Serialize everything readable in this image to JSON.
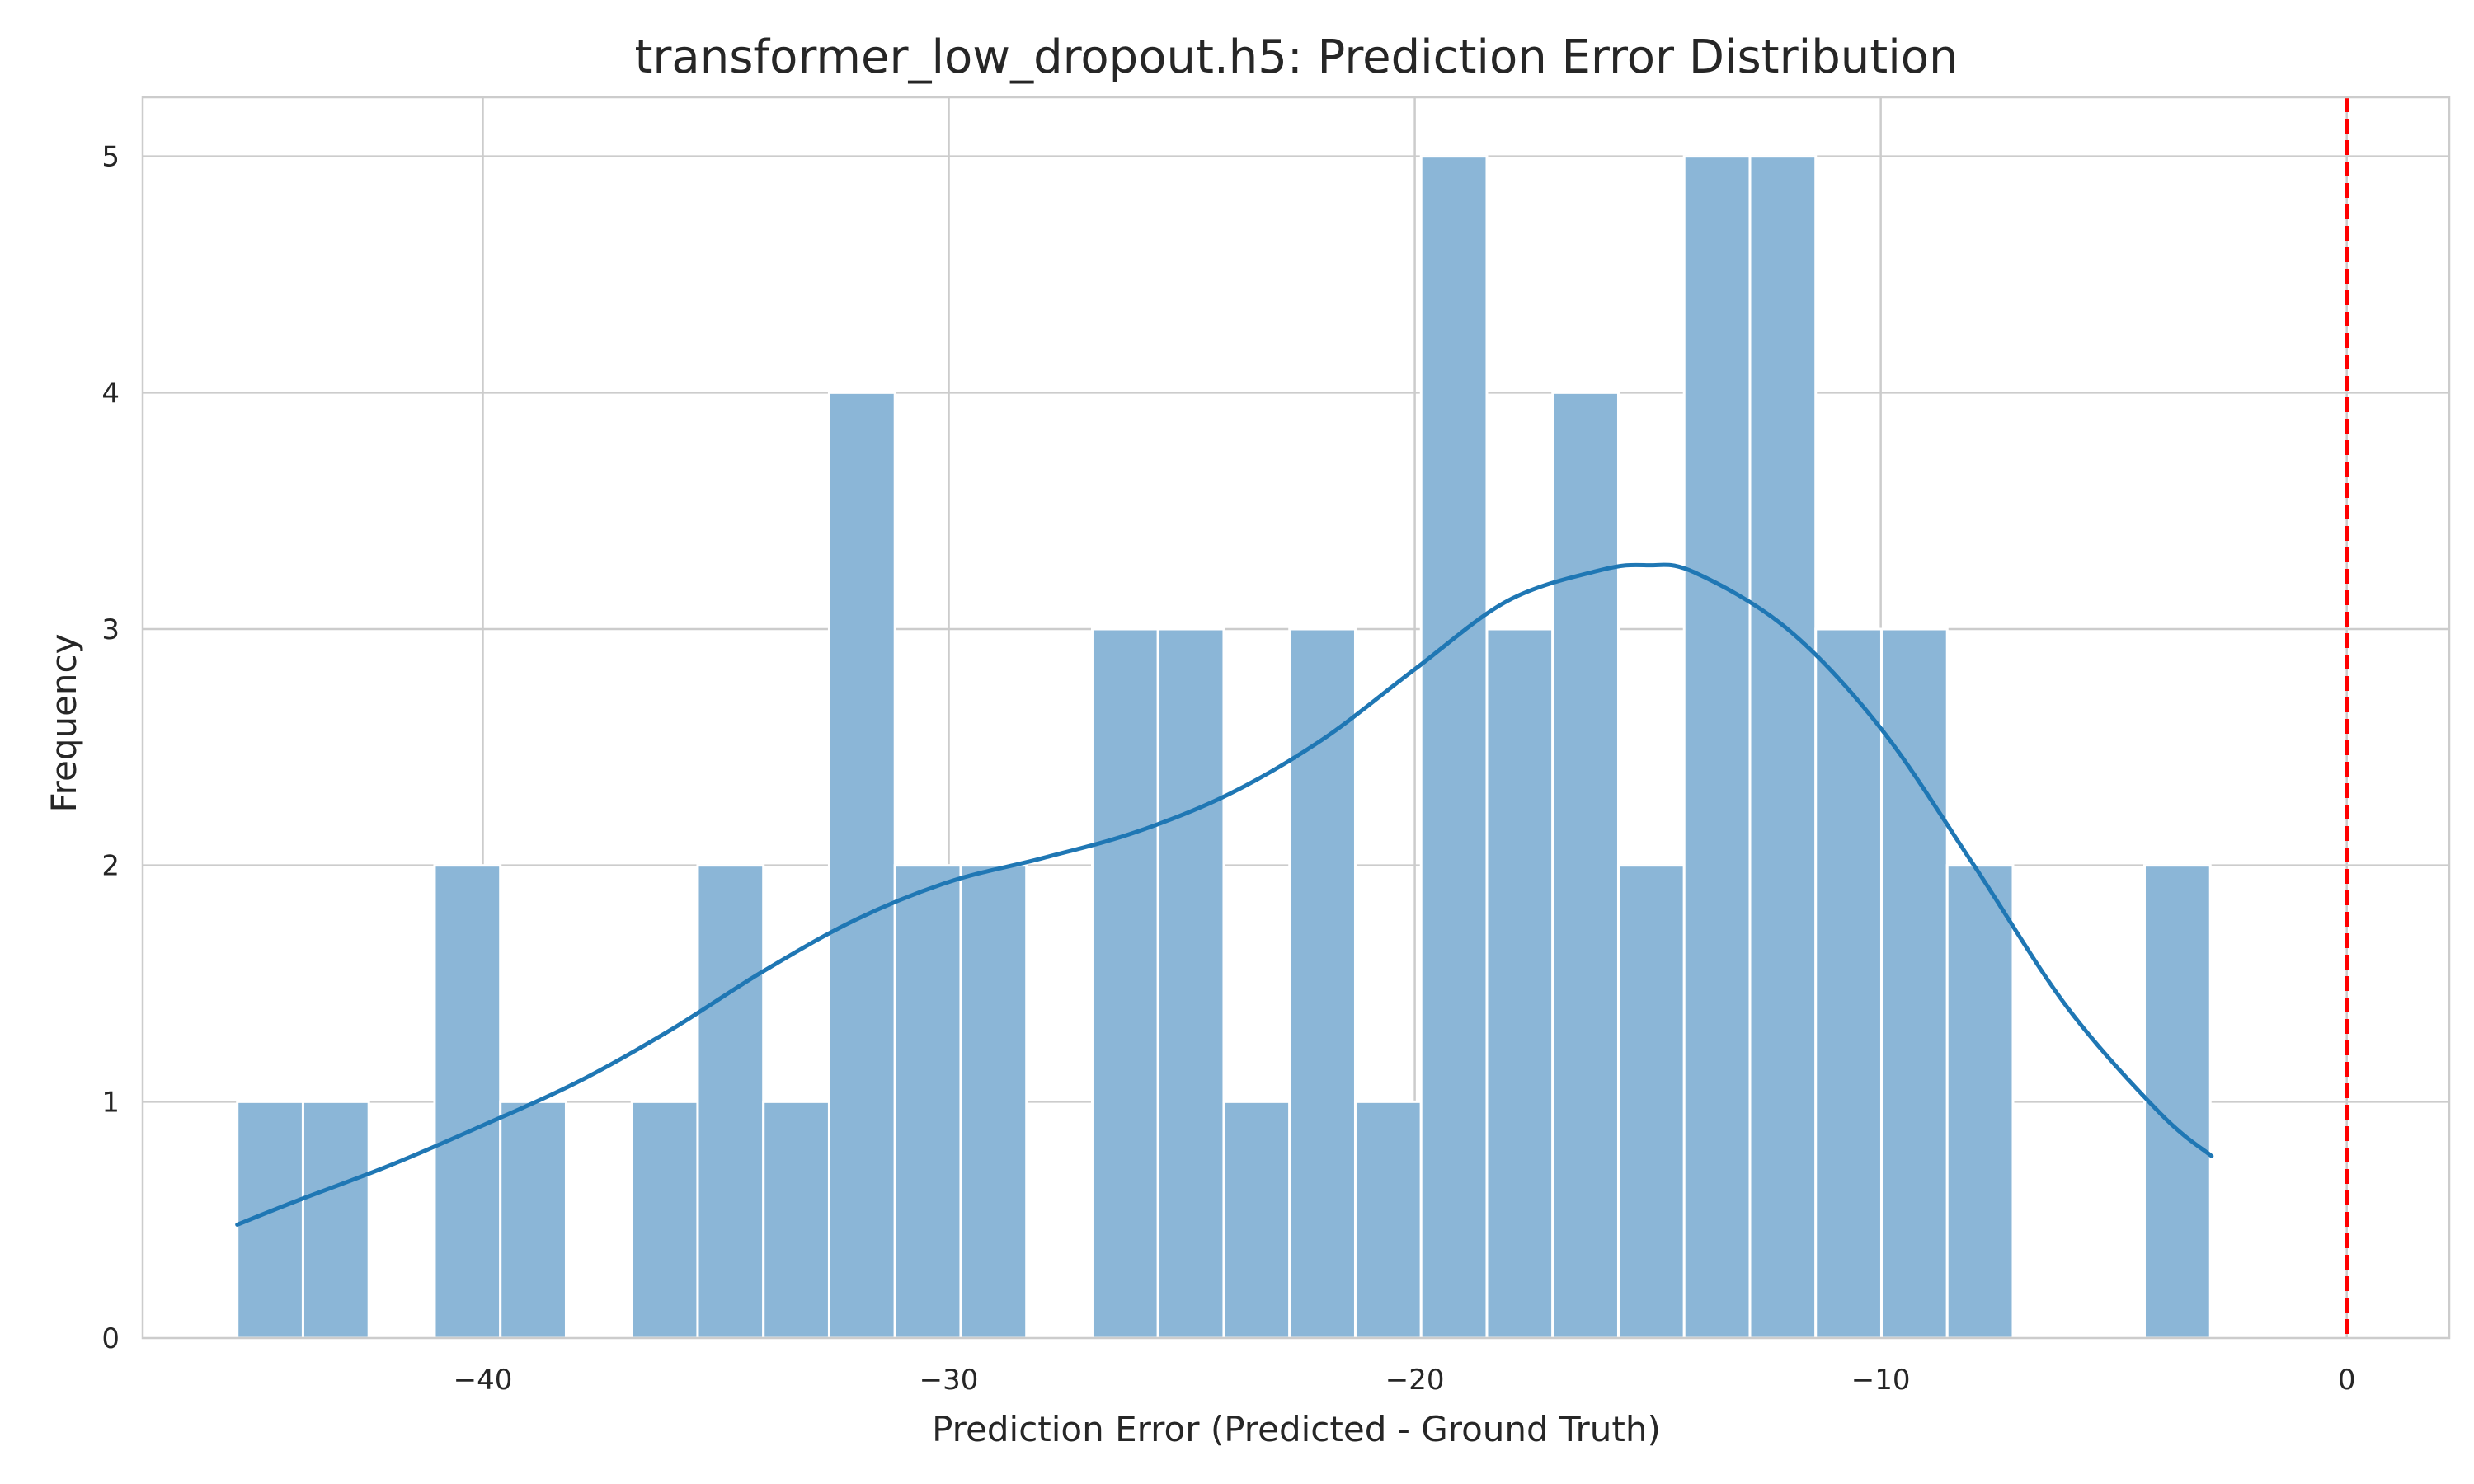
{
  "chart_data": {
    "type": "bar",
    "subtype": "histogram-with-kde",
    "title": "transformer_low_dropout.h5: Prediction Error Distribution",
    "xlabel": "Prediction Error (Predicted - Ground Truth)",
    "ylabel": "Frequency",
    "xlim": [
      -47.3,
      2.2
    ],
    "ylim": [
      0,
      5.25
    ],
    "xticks": [
      -40,
      -30,
      -20,
      -10,
      0
    ],
    "xtick_labels": [
      "−40",
      "−30",
      "−20",
      "−10",
      "0"
    ],
    "yticks": [
      0,
      1,
      2,
      3,
      4,
      5
    ],
    "ytick_labels": [
      "0",
      "1",
      "2",
      "3",
      "4",
      "5"
    ],
    "grid": true,
    "bar_color": "#8bb6d7",
    "bar_edge_color": "#ffffff",
    "bin_start": -45.27,
    "bin_width": 1.4114,
    "counts": [
      1,
      1,
      0,
      2,
      1,
      0,
      1,
      2,
      1,
      4,
      2,
      2,
      0,
      3,
      3,
      1,
      3,
      1,
      5,
      3,
      4,
      2,
      5,
      5,
      3,
      3,
      2,
      0,
      0,
      2
    ],
    "kde": {
      "color": "#1f77b4",
      "x": [
        -45.27,
        -44,
        -42,
        -40,
        -38,
        -36,
        -34,
        -32,
        -30,
        -28,
        -26,
        -24,
        -22,
        -20,
        -18,
        -16,
        -15,
        -14,
        -12,
        -10,
        -8,
        -6,
        -4,
        -2.9
      ],
      "y": [
        0.48,
        0.58,
        0.73,
        0.9,
        1.08,
        1.3,
        1.55,
        1.77,
        1.93,
        2.03,
        2.14,
        2.3,
        2.53,
        2.83,
        3.12,
        3.25,
        3.27,
        3.24,
        3.0,
        2.58,
        2.0,
        1.4,
        0.95,
        0.77
      ]
    },
    "reference_line": {
      "x": 0,
      "color": "#ff0000",
      "style": "dashed"
    }
  }
}
